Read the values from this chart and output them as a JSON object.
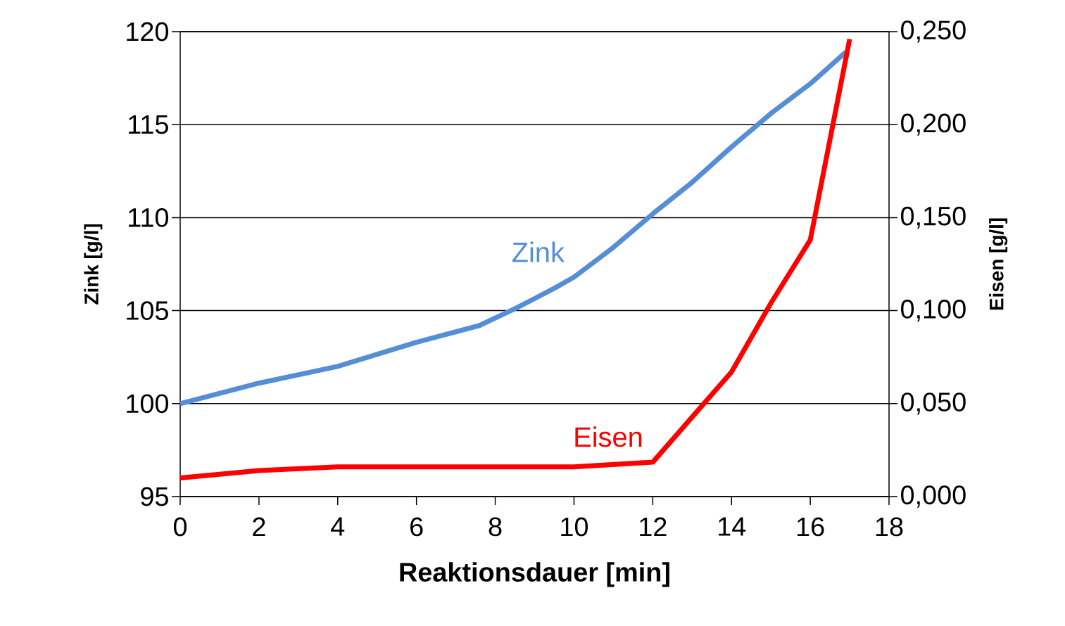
{
  "chart_data": {
    "type": "line",
    "xlabel": "Reaktionsdauer [min]",
    "ylabel": "Zink [g/l]",
    "y2label": "Eisen [g/l]",
    "xlim": [
      0,
      18
    ],
    "xticks": [
      0,
      2,
      4,
      6,
      8,
      10,
      12,
      14,
      16,
      18
    ],
    "ylim": [
      95,
      120
    ],
    "yticks": [
      95,
      100,
      105,
      110,
      115,
      120
    ],
    "y2lim": [
      0,
      0.25
    ],
    "y2ticks": [
      {
        "value": 0,
        "label": "0,000"
      },
      {
        "value": 0.05,
        "label": "0,050"
      },
      {
        "value": 0.1,
        "label": "0,100"
      },
      {
        "value": 0.15,
        "label": "0,150"
      },
      {
        "value": 0.2,
        "label": "0,200"
      },
      {
        "value": 0.25,
        "label": "0,250"
      }
    ],
    "grid": "y",
    "marker": "none",
    "line_style": "solid",
    "series": [
      {
        "name": "Zink",
        "color": "#558ed5",
        "x": [
          0,
          2,
          4,
          6,
          7.6,
          8.5,
          9.5,
          10,
          11,
          12,
          13,
          14,
          15,
          16,
          16.9
        ],
        "values": [
          100,
          101.1,
          102,
          103.3,
          104.2,
          105.1,
          106.2,
          106.8,
          108.4,
          110.2,
          111.9,
          113.8,
          115.6,
          117.2,
          118.9
        ]
      },
      {
        "name": "Eisen",
        "color": "#ff0000",
        "axis": "y2",
        "x": [
          0,
          2,
          4,
          10,
          12,
          14,
          15,
          16,
          17
        ],
        "values": [
          0.01,
          0.014,
          0.016,
          0.016,
          0.0185,
          0.067,
          0.104,
          0.138,
          0.246
        ]
      }
    ]
  }
}
